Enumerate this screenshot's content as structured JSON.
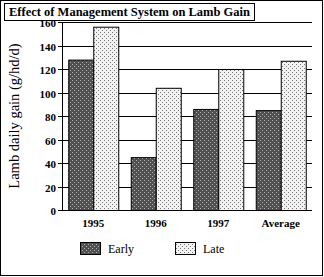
{
  "chart_data": {
    "type": "bar",
    "title": "Effect of Management System on Lamb Gain",
    "y_label": "Lamb daily gain (g/hd/d)",
    "categories": [
      "1995",
      "1996",
      "1997",
      "Average"
    ],
    "series": [
      {
        "name": "Early",
        "color": "#505050",
        "values": [
          128,
          45,
          86,
          85
        ]
      },
      {
        "name": "Late",
        "color": "#f2f2f2",
        "values": [
          156,
          104,
          120,
          127
        ]
      }
    ],
    "ylim": [
      0,
      160
    ],
    "yticks": [
      0,
      20,
      40,
      60,
      80,
      100,
      120,
      140,
      160
    ],
    "grid": true,
    "legend": "bottom"
  }
}
